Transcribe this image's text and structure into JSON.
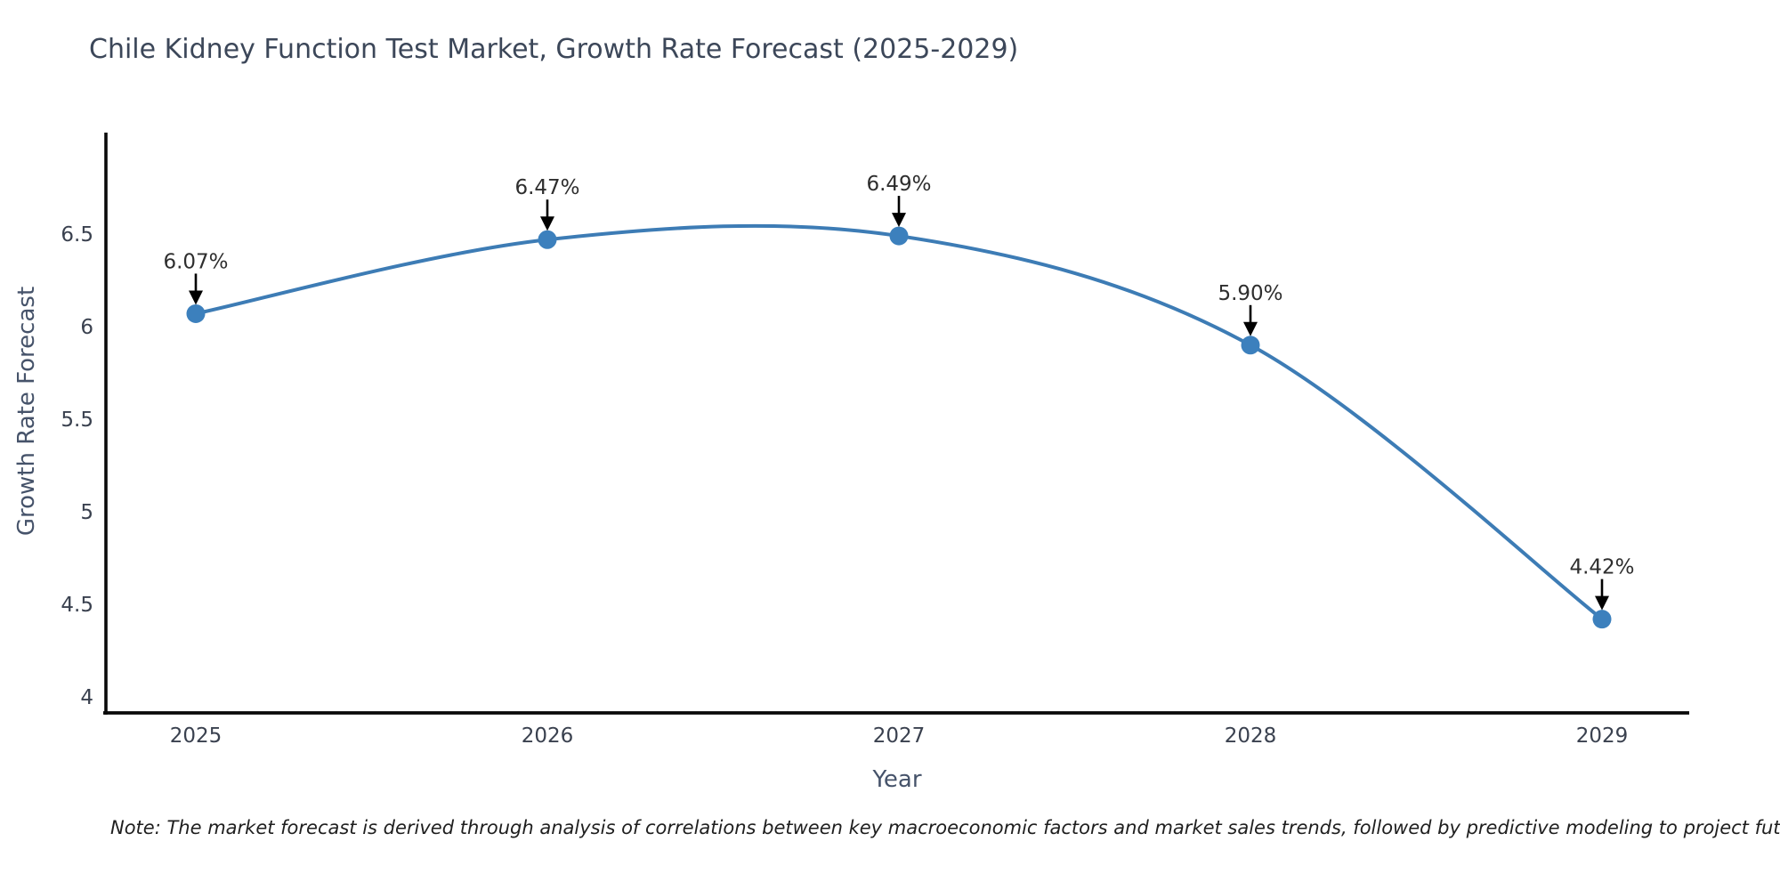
{
  "chart_data": {
    "type": "line",
    "title": "Chile Kidney Function Test Market, Growth Rate Forecast (2025-2029)",
    "xlabel": "Year",
    "ylabel": "Growth Rate Forecast",
    "x": [
      2025,
      2026,
      2027,
      2028,
      2029
    ],
    "categories": [
      "2025",
      "2026",
      "2027",
      "2028",
      "2029"
    ],
    "values": [
      6.07,
      6.47,
      6.49,
      5.9,
      4.42
    ],
    "point_labels": [
      "6.07%",
      "6.47%",
      "6.49%",
      "5.90%",
      "4.42%"
    ],
    "yticks": [
      4,
      4.5,
      5,
      5.5,
      6,
      6.5
    ],
    "ytick_labels": [
      "4",
      "4.5",
      "5",
      "5.5",
      "6",
      "6.5"
    ],
    "ylim": [
      3.9,
      7.05
    ],
    "grid": false,
    "legend": "none",
    "line_color": "#3d7cb5",
    "marker_color": "#3c80bd",
    "axis_color": "#0a0a0a",
    "tick_label_color": "#3a414f",
    "annotation_color": "#2e2e2e",
    "curve_style": "smooth-spline",
    "annotation_arrow": "black-down-arrow"
  },
  "note": "Note: The market forecast is derived through analysis of correlations between key macroeconomic factors and market sales trends, followed by predictive modeling to project future sales"
}
